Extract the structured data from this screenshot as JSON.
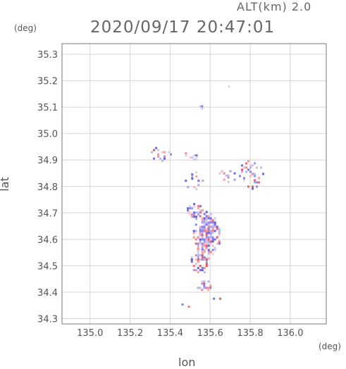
{
  "header": {
    "altitude_label": "ALT(km)  2.0",
    "timestamp": "2020/09/17 20:47:01"
  },
  "axes": {
    "y_unit": "(deg)",
    "x_unit": "(deg)",
    "y_label": "lat",
    "x_label": "lon"
  },
  "chart_data": {
    "type": "heatmap",
    "xlabel": "lon",
    "ylabel": "lat",
    "xlim": [
      134.86,
      136.18
    ],
    "ylim": [
      34.28,
      35.34
    ],
    "x_ticks": [
      135.0,
      135.2,
      135.4,
      135.6,
      135.8,
      136.0
    ],
    "x_tick_labels": [
      "135.0",
      "135.2",
      "135.4",
      "135.6",
      "135.8",
      "136.0"
    ],
    "y_ticks": [
      34.3,
      34.4,
      34.5,
      34.6,
      34.7,
      34.8,
      34.9,
      35.0,
      35.1,
      35.2,
      35.3
    ],
    "y_tick_labels": [
      "34.3",
      "34.4",
      "34.5",
      "34.6",
      "34.7",
      "34.8",
      "34.9",
      "35.0",
      "35.1",
      "35.2",
      "35.3"
    ],
    "grid": true,
    "colors": {
      "positive": "#e8505a",
      "negative": "#5a5ae8"
    },
    "blobs": [
      {
        "lon": 135.58,
        "lat": 34.62,
        "rx": 0.07,
        "ry": 0.09,
        "density": 0.75
      },
      {
        "lon": 135.55,
        "lat": 34.52,
        "rx": 0.05,
        "ry": 0.05,
        "density": 0.7
      },
      {
        "lon": 135.57,
        "lat": 34.43,
        "rx": 0.04,
        "ry": 0.025,
        "density": 0.55
      },
      {
        "lon": 135.52,
        "lat": 34.71,
        "rx": 0.04,
        "ry": 0.03,
        "density": 0.55
      },
      {
        "lon": 135.8,
        "lat": 34.85,
        "rx": 0.06,
        "ry": 0.06,
        "density": 0.4
      },
      {
        "lon": 135.68,
        "lat": 34.84,
        "rx": 0.04,
        "ry": 0.04,
        "density": 0.3
      },
      {
        "lon": 135.35,
        "lat": 34.93,
        "rx": 0.05,
        "ry": 0.03,
        "density": 0.3
      },
      {
        "lon": 135.5,
        "lat": 34.92,
        "rx": 0.04,
        "ry": 0.02,
        "density": 0.3
      },
      {
        "lon": 135.52,
        "lat": 34.82,
        "rx": 0.05,
        "ry": 0.04,
        "density": 0.18
      },
      {
        "lon": 135.55,
        "lat": 35.1,
        "rx": 0.02,
        "ry": 0.01,
        "density": 0.4
      },
      {
        "lon": 135.69,
        "lat": 35.18,
        "rx": 0.005,
        "ry": 0.005,
        "density": 1.0
      },
      {
        "lon": 135.45,
        "lat": 34.345,
        "rx": 0.06,
        "ry": 0.015,
        "density": 0.3
      },
      {
        "lon": 135.64,
        "lat": 34.38,
        "rx": 0.03,
        "ry": 0.01,
        "density": 0.35
      }
    ]
  }
}
